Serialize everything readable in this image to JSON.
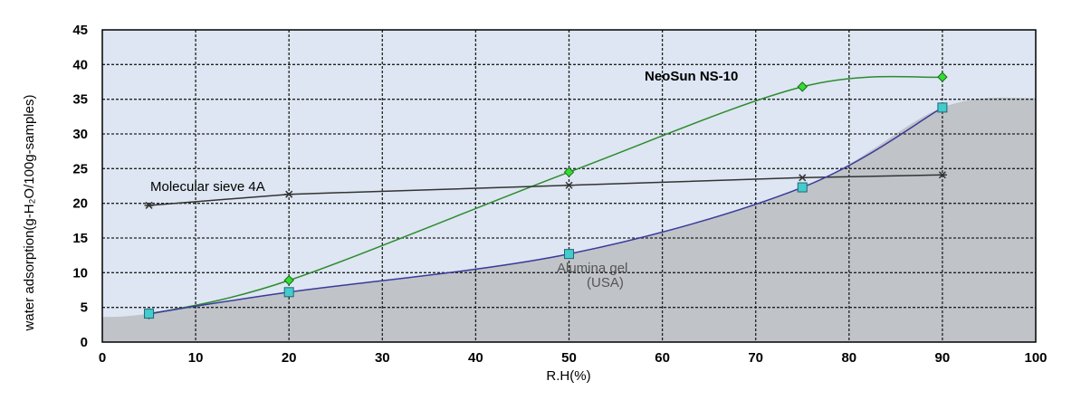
{
  "chart_data": {
    "type": "line",
    "title": "",
    "xlabel": "R.H(%)",
    "ylabel": "water adsorption(g-H₂O/100g-samples)",
    "xlim": [
      0,
      100
    ],
    "ylim": [
      0,
      45
    ],
    "x_ticks": [
      "0",
      "10",
      "20",
      "30",
      "40",
      "50",
      "60",
      "70",
      "80",
      "90",
      "100"
    ],
    "y_ticks": [
      "0",
      "5",
      "10",
      "15",
      "20",
      "25",
      "30",
      "35",
      "40",
      "45"
    ],
    "grid": true,
    "series": [
      {
        "name": "NeoSun NS-10",
        "color": "#2e8b2e",
        "marker": "diamond",
        "marker_color": "#33dd33",
        "x": [
          5,
          20,
          50,
          75,
          90
        ],
        "y": [
          4.0,
          8.9,
          24.5,
          36.8,
          38.2
        ]
      },
      {
        "name": "Molecular sieve 4A",
        "color": "#333333",
        "marker": "star",
        "x": [
          5,
          20,
          50,
          75,
          90
        ],
        "y": [
          19.7,
          21.3,
          22.6,
          23.7,
          24.1
        ]
      },
      {
        "name": "Alumina gel (USA)",
        "color": "#3a3a9a",
        "marker": "square",
        "marker_color": "#44cccc",
        "x": [
          5,
          20,
          50,
          75,
          90
        ],
        "y": [
          4.1,
          7.2,
          12.7,
          22.3,
          33.8
        ]
      }
    ],
    "annotations": [
      {
        "text": "NeoSun NS-10",
        "bold": true
      },
      {
        "text": "Molecular sieve 4A"
      },
      {
        "text": "Alumina gel"
      },
      {
        "text": "(USA)"
      }
    ],
    "colors": {
      "plot_background": "#dde6f2",
      "shaded_area": "#c0c3c8",
      "grid": "#222222"
    }
  }
}
